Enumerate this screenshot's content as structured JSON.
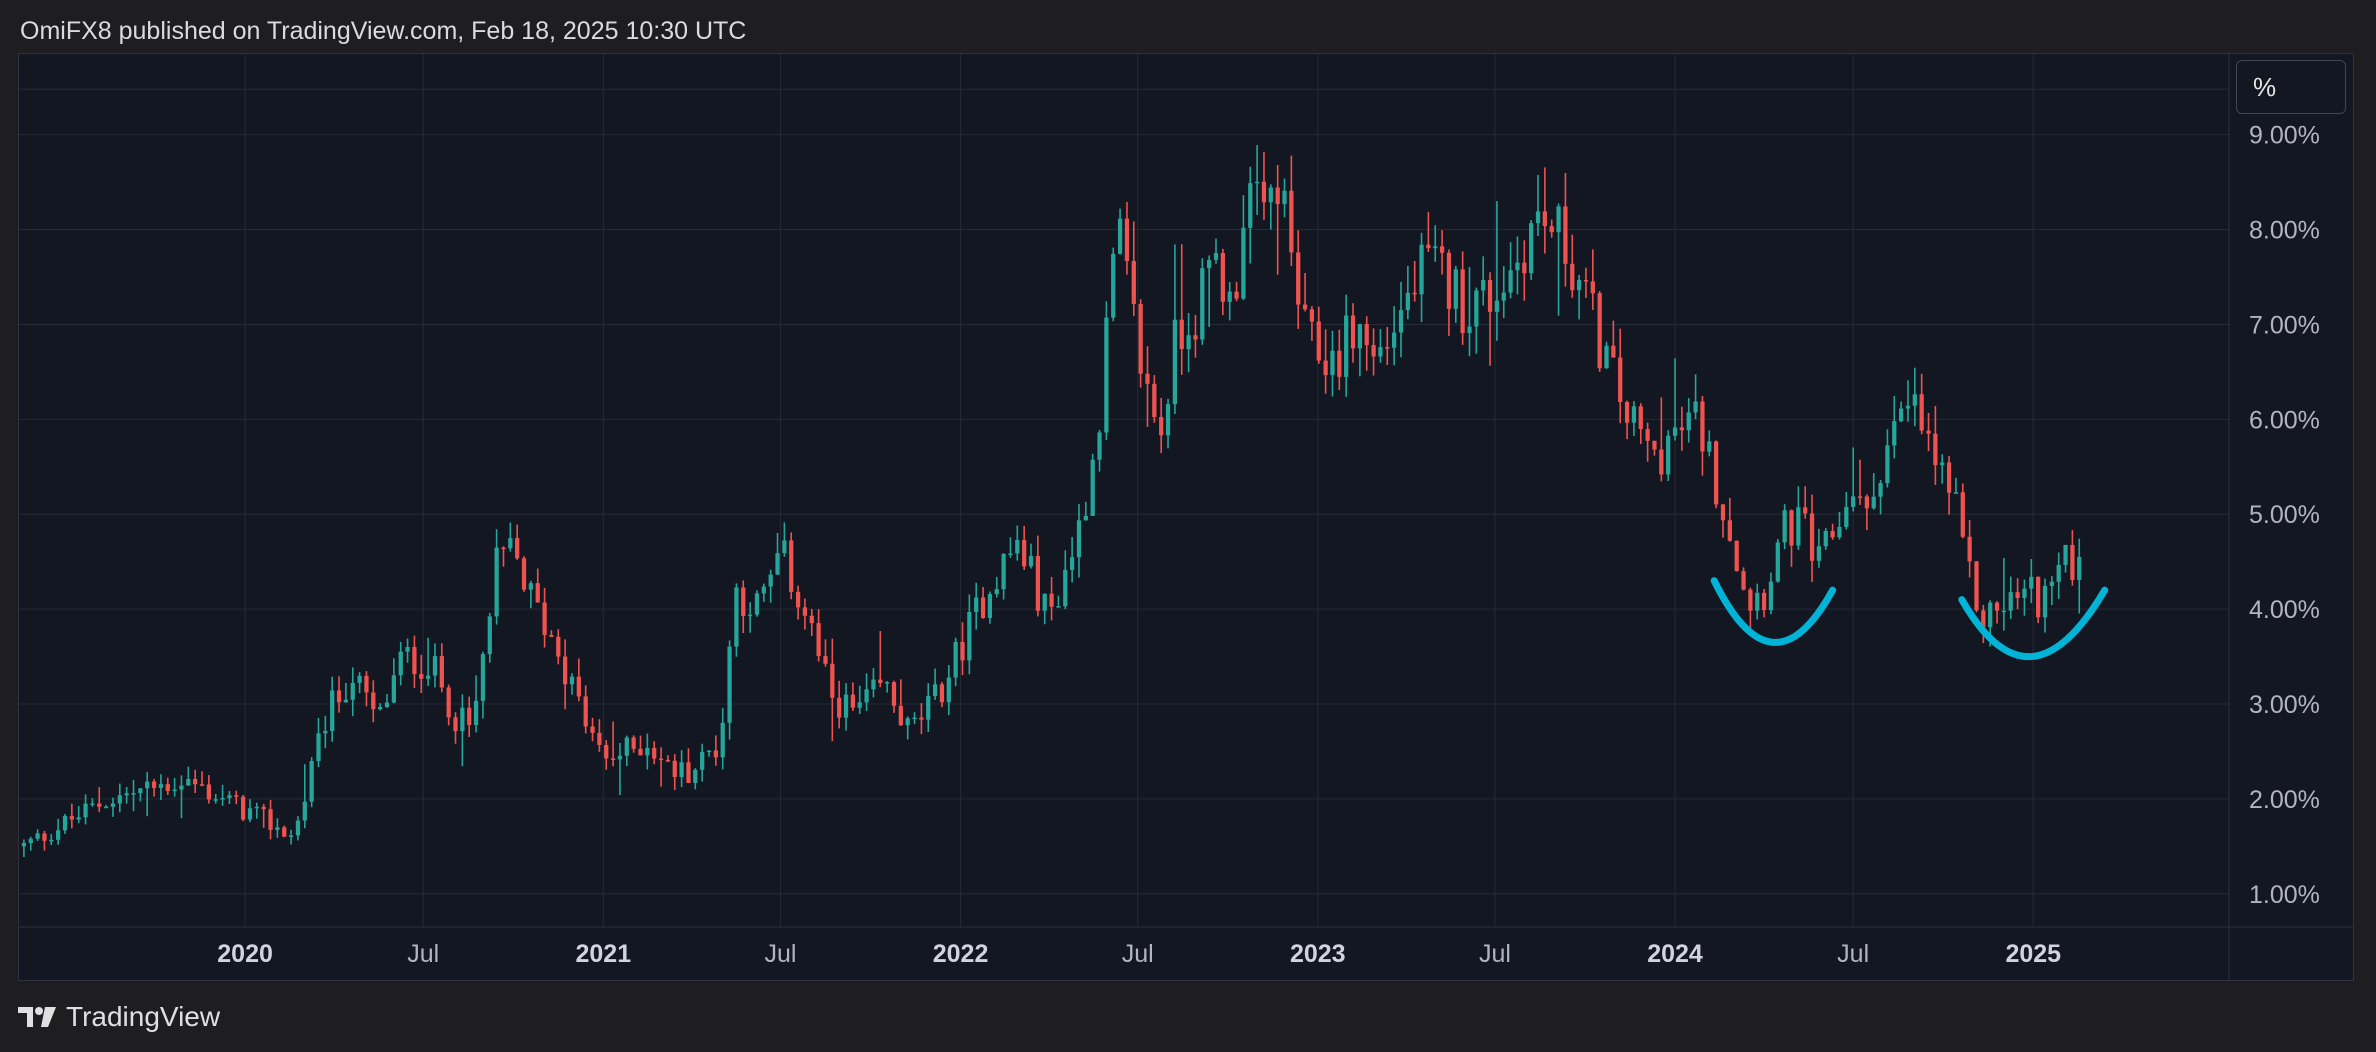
{
  "header": {
    "attribution": "OmiFX8 published on TradingView.com, Feb 18, 2025 10:30 UTC"
  },
  "toolbar": {
    "scale_label": "%"
  },
  "footer": {
    "brand": "TradingView",
    "logo_icon": "tradingview-logo-icon"
  },
  "colors": {
    "up": "#26a69a",
    "down": "#ef5350",
    "annotation": "#00b4d8",
    "grid": "#252a36",
    "text": "#b2b5be"
  },
  "chart_data": {
    "type": "candlestick",
    "interval": "weekly",
    "grid": true,
    "y_axis": {
      "side": "right",
      "ticks": [
        "1.00%",
        "2.00%",
        "3.00%",
        "4.00%",
        "5.00%",
        "6.00%",
        "7.00%",
        "8.00%",
        "9.00%"
      ],
      "tick_values": [
        1,
        2,
        3,
        4,
        5,
        6,
        7,
        8,
        9
      ],
      "range": [
        0.65,
        9.85
      ],
      "unit": "%"
    },
    "x_axis": {
      "range": [
        "2019-05-15",
        "2025-07-20"
      ],
      "ticks": [
        {
          "label": "2020",
          "date": "2020-01-01",
          "bold": true
        },
        {
          "label": "Jul",
          "date": "2020-07-01",
          "bold": false
        },
        {
          "label": "2021",
          "date": "2021-01-01",
          "bold": true
        },
        {
          "label": "Jul",
          "date": "2021-07-01",
          "bold": false
        },
        {
          "label": "2022",
          "date": "2022-01-01",
          "bold": true
        },
        {
          "label": "Jul",
          "date": "2022-07-01",
          "bold": false
        },
        {
          "label": "2023",
          "date": "2023-01-01",
          "bold": true
        },
        {
          "label": "Jul",
          "date": "2023-07-01",
          "bold": false
        },
        {
          "label": "2024",
          "date": "2024-01-01",
          "bold": true
        },
        {
          "label": "Jul",
          "date": "2024-07-01",
          "bold": false
        },
        {
          "label": "2025",
          "date": "2025-01-01",
          "bold": true
        }
      ]
    },
    "series": [
      {
        "type": "close_path",
        "start": "2019-05-20",
        "step_days": 7,
        "points": [
          [
            "2019-05-20",
            1.5
          ],
          [
            "2019-08-15",
            2.0
          ],
          [
            "2019-11-01",
            2.2
          ],
          [
            "2020-01-15",
            1.8
          ],
          [
            "2020-02-20",
            1.6
          ],
          [
            "2020-03-25",
            2.9
          ],
          [
            "2020-04-20",
            3.3
          ],
          [
            "2020-05-15",
            2.8
          ],
          [
            "2020-06-10",
            3.5
          ],
          [
            "2020-07-10",
            3.4
          ],
          [
            "2020-08-01",
            2.9
          ],
          [
            "2020-08-20",
            2.7
          ],
          [
            "2020-09-15",
            4.5
          ],
          [
            "2020-10-01",
            4.6
          ],
          [
            "2020-10-20",
            4.1
          ],
          [
            "2020-11-15",
            3.6
          ],
          [
            "2020-12-10",
            2.9
          ],
          [
            "2021-01-01",
            2.4
          ],
          [
            "2021-02-15",
            2.6
          ],
          [
            "2021-03-10",
            2.3
          ],
          [
            "2021-04-01",
            2.3
          ],
          [
            "2021-05-01",
            2.6
          ],
          [
            "2021-05-15",
            4.2
          ],
          [
            "2021-06-10",
            4.0
          ],
          [
            "2021-07-01",
            4.6
          ],
          [
            "2021-08-01",
            3.8
          ],
          [
            "2021-08-20",
            3.1
          ],
          [
            "2021-09-15",
            2.9
          ],
          [
            "2021-10-15",
            3.2
          ],
          [
            "2021-11-10",
            2.7
          ],
          [
            "2021-12-10",
            3.1
          ],
          [
            "2022-01-01",
            3.6
          ],
          [
            "2022-02-01",
            4.3
          ],
          [
            "2022-03-01",
            4.7
          ],
          [
            "2022-04-01",
            3.9
          ],
          [
            "2022-05-01",
            4.8
          ],
          [
            "2022-05-20",
            5.8
          ],
          [
            "2022-06-10",
            8.0
          ],
          [
            "2022-06-25",
            7.1
          ],
          [
            "2022-07-10",
            6.3
          ],
          [
            "2022-07-25",
            5.9
          ],
          [
            "2022-08-10",
            6.9
          ],
          [
            "2022-09-01",
            7.2
          ],
          [
            "2022-09-20",
            7.7
          ],
          [
            "2022-10-05",
            7.1
          ],
          [
            "2022-10-20",
            8.5
          ],
          [
            "2022-11-05",
            8.0
          ],
          [
            "2022-11-20",
            8.6
          ],
          [
            "2022-12-05",
            7.7
          ],
          [
            "2022-12-20",
            6.8
          ],
          [
            "2023-01-15",
            6.6
          ],
          [
            "2023-02-10",
            7.0
          ],
          [
            "2023-03-01",
            6.6
          ],
          [
            "2023-03-25",
            7.1
          ],
          [
            "2023-04-20",
            7.6
          ],
          [
            "2023-05-10",
            7.5
          ],
          [
            "2023-06-01",
            7.2
          ],
          [
            "2023-06-25",
            7.3
          ],
          [
            "2023-07-20",
            7.6
          ],
          [
            "2023-08-10",
            8.1
          ],
          [
            "2023-09-01",
            8.0
          ],
          [
            "2023-09-20",
            7.6
          ],
          [
            "2023-10-10",
            7.0
          ],
          [
            "2023-10-30",
            6.4
          ],
          [
            "2023-11-20",
            5.9
          ],
          [
            "2023-12-10",
            5.6
          ],
          [
            "2023-12-28",
            5.8
          ],
          [
            "2024-01-25",
            6.0
          ],
          [
            "2024-02-10",
            5.4
          ],
          [
            "2024-02-25",
            4.9
          ],
          [
            "2024-03-15",
            4.1
          ],
          [
            "2024-04-01",
            4.2
          ],
          [
            "2024-04-20",
            4.8
          ],
          [
            "2024-05-10",
            4.9
          ],
          [
            "2024-05-25",
            4.4
          ],
          [
            "2024-06-15",
            4.9
          ],
          [
            "2024-07-01",
            5.3
          ],
          [
            "2024-07-15",
            4.9
          ],
          [
            "2024-08-01",
            5.7
          ],
          [
            "2024-08-20",
            6.0
          ],
          [
            "2024-09-01",
            6.1
          ],
          [
            "2024-09-20",
            5.6
          ],
          [
            "2024-10-10",
            5.2
          ],
          [
            "2024-10-25",
            4.4
          ],
          [
            "2024-11-10",
            3.9
          ],
          [
            "2024-11-25",
            4.0
          ],
          [
            "2024-12-10",
            4.1
          ],
          [
            "2024-12-25",
            4.2
          ],
          [
            "2025-01-10",
            4.1
          ],
          [
            "2025-01-25",
            4.4
          ],
          [
            "2025-02-18",
            4.55
          ]
        ]
      },
      {
        "type": "annotation_arc",
        "color": "#00b4d8",
        "points": [
          [
            "2024-02-10",
            4.3
          ],
          [
            "2024-04-10",
            3.65
          ],
          [
            "2024-06-10",
            4.2
          ]
        ]
      },
      {
        "type": "annotation_arc",
        "color": "#00b4d8",
        "points": [
          [
            "2024-10-20",
            4.1
          ],
          [
            "2024-12-30",
            3.5
          ],
          [
            "2025-03-15",
            4.2
          ]
        ]
      }
    ]
  }
}
